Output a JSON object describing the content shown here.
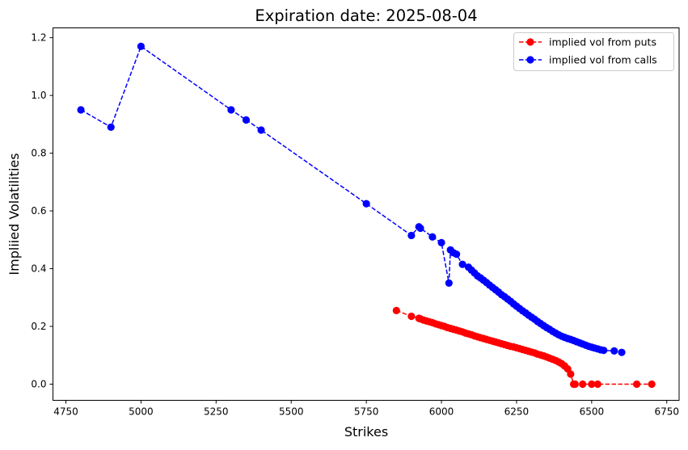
{
  "chart_data": {
    "type": "line",
    "title": "Expiration date: 2025-08-04",
    "xlabel": "Strikes",
    "ylabel": "Impliied Volatilities",
    "xlim": [
      4707,
      6791
    ],
    "ylim": [
      -0.056,
      1.234
    ],
    "xticks": [
      4750,
      5000,
      5250,
      5500,
      5750,
      6000,
      6250,
      6500,
      6750
    ],
    "yticks": [
      0.0,
      0.2,
      0.4,
      0.6,
      0.8,
      1.0,
      1.2
    ],
    "ytick_labels": [
      "0.0",
      "0.2",
      "0.4",
      "0.6",
      "0.8",
      "1.0",
      "1.2"
    ],
    "grid": false,
    "legend_position": "top-right",
    "series": [
      {
        "name": "implied vol from puts",
        "color": "#ff0000",
        "style": "dashed line with circle markers",
        "x": [
          5850,
          5900,
          5925,
          5930,
          5940,
          5950,
          5960,
          5970,
          5980,
          5990,
          6000,
          6010,
          6020,
          6030,
          6040,
          6050,
          6060,
          6070,
          6080,
          6090,
          6100,
          6110,
          6120,
          6130,
          6140,
          6150,
          6160,
          6170,
          6180,
          6190,
          6200,
          6210,
          6220,
          6230,
          6240,
          6250,
          6260,
          6270,
          6280,
          6290,
          6300,
          6310,
          6320,
          6330,
          6340,
          6350,
          6360,
          6370,
          6380,
          6390,
          6400,
          6410,
          6420,
          6430,
          6440,
          6445,
          6470,
          6500,
          6520,
          6650,
          6700
        ],
        "y": [
          0.255,
          0.235,
          0.228,
          0.226,
          0.222,
          0.219,
          0.216,
          0.213,
          0.209,
          0.206,
          0.203,
          0.2,
          0.196,
          0.193,
          0.19,
          0.187,
          0.184,
          0.181,
          0.177,
          0.174,
          0.171,
          0.167,
          0.164,
          0.161,
          0.158,
          0.155,
          0.152,
          0.149,
          0.146,
          0.143,
          0.14,
          0.137,
          0.134,
          0.131,
          0.129,
          0.126,
          0.123,
          0.12,
          0.117,
          0.114,
          0.111,
          0.108,
          0.104,
          0.101,
          0.098,
          0.094,
          0.09,
          0.086,
          0.082,
          0.077,
          0.071,
          0.063,
          0.053,
          0.035,
          0.0,
          0.0,
          0.0,
          0.0,
          0.0,
          0.0,
          0.0
        ]
      },
      {
        "name": "implied vol from calls",
        "color": "#0000ff",
        "style": "dashed line with circle markers",
        "x": [
          4800,
          4900,
          5000,
          5300,
          5350,
          5400,
          5750,
          5900,
          5925,
          5930,
          5970,
          6000,
          6025,
          6030,
          6040,
          6050,
          6070,
          6090,
          6100,
          6110,
          6120,
          6130,
          6140,
          6150,
          6160,
          6170,
          6180,
          6190,
          6200,
          6210,
          6220,
          6230,
          6240,
          6250,
          6260,
          6270,
          6280,
          6290,
          6300,
          6310,
          6320,
          6330,
          6340,
          6350,
          6360,
          6370,
          6380,
          6390,
          6400,
          6410,
          6420,
          6430,
          6440,
          6450,
          6460,
          6470,
          6480,
          6490,
          6500,
          6510,
          6520,
          6530,
          6540,
          6575,
          6600
        ],
        "y": [
          0.95,
          0.89,
          1.17,
          0.95,
          0.915,
          0.88,
          0.625,
          0.515,
          0.545,
          0.54,
          0.51,
          0.49,
          0.35,
          0.465,
          0.455,
          0.45,
          0.415,
          0.405,
          0.395,
          0.385,
          0.375,
          0.368,
          0.36,
          0.352,
          0.343,
          0.335,
          0.327,
          0.319,
          0.31,
          0.303,
          0.295,
          0.287,
          0.278,
          0.27,
          0.262,
          0.254,
          0.247,
          0.239,
          0.232,
          0.225,
          0.217,
          0.21,
          0.203,
          0.196,
          0.19,
          0.183,
          0.177,
          0.171,
          0.166,
          0.162,
          0.158,
          0.155,
          0.151,
          0.147,
          0.143,
          0.139,
          0.135,
          0.131,
          0.128,
          0.125,
          0.122,
          0.119,
          0.117,
          0.115,
          0.11
        ]
      }
    ]
  }
}
